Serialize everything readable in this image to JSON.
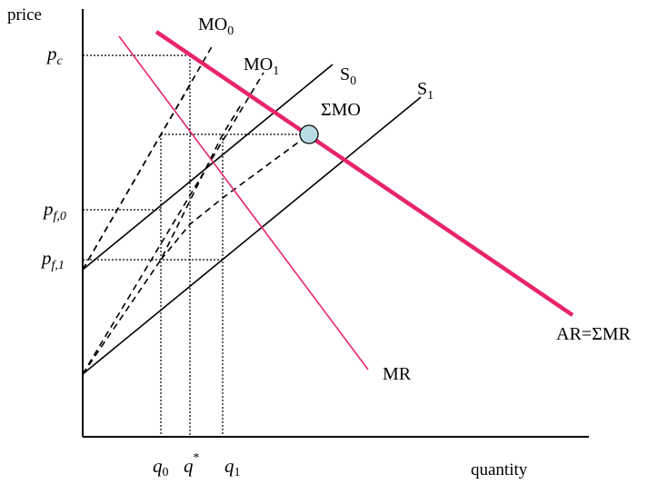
{
  "axes": {
    "y_label": "price",
    "x_label": "quantity"
  },
  "price_ticks": {
    "pc": {
      "base": "p",
      "sub": "c"
    },
    "pf0": {
      "base": "p",
      "sub": "f,0"
    },
    "pf1": {
      "base": "p",
      "sub": "f,1"
    }
  },
  "quantity_ticks": {
    "q0": {
      "base": "q",
      "sub": "0"
    },
    "qstar": {
      "base": "q",
      "sup": "*"
    },
    "q1": {
      "base": "q",
      "sub": "1"
    }
  },
  "curves": {
    "mo0": {
      "base": "MO",
      "sub": "0"
    },
    "mo1": {
      "base": "MO",
      "sub": "1"
    },
    "s0": {
      "base": "S",
      "sub": "0"
    },
    "s1": {
      "base": "S",
      "sub": "1"
    },
    "sum_mo": "ΣMO",
    "mr": "MR",
    "ar": "AR=ΣMR"
  },
  "colors": {
    "demand": "#e8246b",
    "marker_fill": "#b7dde3",
    "ink": "#000000"
  }
}
